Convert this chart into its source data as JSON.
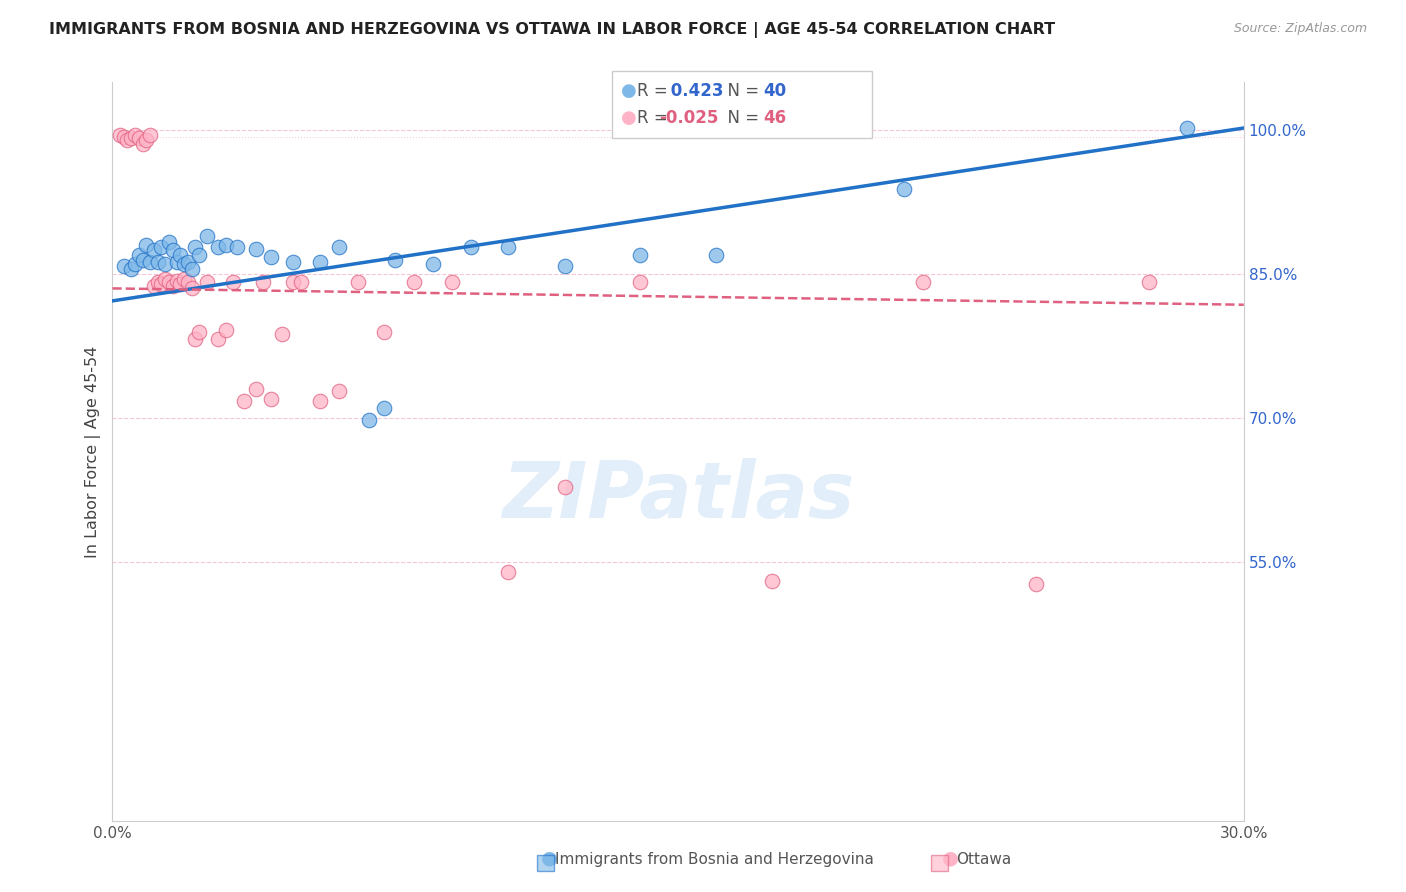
{
  "title": "IMMIGRANTS FROM BOSNIA AND HERZEGOVINA VS OTTAWA IN LABOR FORCE | AGE 45-54 CORRELATION CHART",
  "source": "Source: ZipAtlas.com",
  "ylabel": "In Labor Force | Age 45-54",
  "xmin": 0.0,
  "xmax": 0.3,
  "ymin": 0.28,
  "ymax": 1.05,
  "right_yticks": [
    1.0,
    0.85,
    0.7,
    0.55
  ],
  "right_yticklabels": [
    "100.0%",
    "85.0%",
    "70.0%",
    "55.0%"
  ],
  "xticks": [
    0.0,
    0.05,
    0.1,
    0.15,
    0.2,
    0.25,
    0.3
  ],
  "xticklabels": [
    "0.0%",
    "",
    "",
    "",
    "",
    "",
    "30.0%"
  ],
  "blue_color": "#7EB8E8",
  "pink_color": "#FFB3C6",
  "blue_line_color": "#2171C7",
  "pink_line_color": "#E06080",
  "blue_R": 0.423,
  "blue_N": 40,
  "pink_R": -0.025,
  "pink_N": 46,
  "blue_x": [
    0.003,
    0.005,
    0.006,
    0.007,
    0.008,
    0.009,
    0.01,
    0.011,
    0.012,
    0.013,
    0.014,
    0.015,
    0.016,
    0.017,
    0.018,
    0.019,
    0.02,
    0.021,
    0.022,
    0.023,
    0.025,
    0.028,
    0.03,
    0.033,
    0.038,
    0.042,
    0.048,
    0.055,
    0.06,
    0.068,
    0.072,
    0.075,
    0.085,
    0.095,
    0.105,
    0.12,
    0.14,
    0.16,
    0.21,
    0.285
  ],
  "blue_y": [
    0.858,
    0.855,
    0.86,
    0.87,
    0.865,
    0.88,
    0.862,
    0.875,
    0.862,
    0.878,
    0.86,
    0.883,
    0.875,
    0.862,
    0.87,
    0.86,
    0.862,
    0.855,
    0.878,
    0.87,
    0.89,
    0.878,
    0.88,
    0.878,
    0.876,
    0.868,
    0.862,
    0.862,
    0.878,
    0.698,
    0.71,
    0.865,
    0.86,
    0.878,
    0.878,
    0.858,
    0.87,
    0.87,
    0.938,
    1.002
  ],
  "pink_x": [
    0.002,
    0.003,
    0.004,
    0.005,
    0.006,
    0.007,
    0.008,
    0.009,
    0.01,
    0.011,
    0.012,
    0.013,
    0.014,
    0.015,
    0.016,
    0.017,
    0.018,
    0.019,
    0.02,
    0.021,
    0.022,
    0.023,
    0.025,
    0.028,
    0.03,
    0.032,
    0.035,
    0.038,
    0.04,
    0.042,
    0.045,
    0.048,
    0.05,
    0.055,
    0.06,
    0.065,
    0.072,
    0.08,
    0.09,
    0.105,
    0.12,
    0.14,
    0.175,
    0.215,
    0.245,
    0.275
  ],
  "pink_y": [
    0.995,
    0.993,
    0.99,
    0.992,
    0.995,
    0.992,
    0.985,
    0.99,
    0.995,
    0.838,
    0.842,
    0.84,
    0.845,
    0.842,
    0.838,
    0.843,
    0.84,
    0.845,
    0.842,
    0.835,
    0.782,
    0.79,
    0.842,
    0.782,
    0.792,
    0.842,
    0.718,
    0.73,
    0.842,
    0.72,
    0.788,
    0.842,
    0.842,
    0.718,
    0.728,
    0.842,
    0.79,
    0.842,
    0.842,
    0.54,
    0.628,
    0.842,
    0.53,
    0.842,
    0.527,
    0.842
  ]
}
